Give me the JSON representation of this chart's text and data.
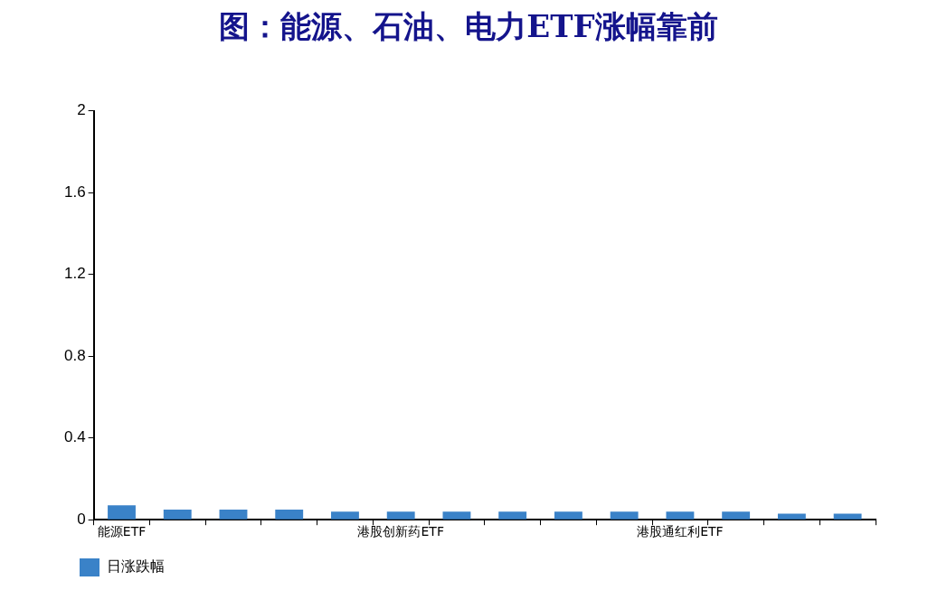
{
  "chart_data": {
    "type": "bar",
    "title": "图：能源、石油、电力ETF涨幅靠前",
    "categories": [
      "能源ETF",
      null,
      null,
      null,
      null,
      "港股创新药ETF",
      null,
      null,
      null,
      null,
      "港股通红利ETF",
      null,
      null,
      null
    ],
    "series": [
      {
        "name": "日涨跌幅",
        "color": "#3a82c8",
        "values": [
          0.07,
          0.05,
          0.05,
          0.05,
          0.04,
          0.04,
          0.04,
          0.04,
          0.04,
          0.04,
          0.04,
          0.04,
          0.03,
          0.03
        ]
      }
    ],
    "ylim": [
      0,
      2
    ],
    "yticks": [
      0,
      0.4,
      0.8,
      1.2,
      1.6,
      2
    ],
    "grid": false,
    "legend": "bottom"
  }
}
